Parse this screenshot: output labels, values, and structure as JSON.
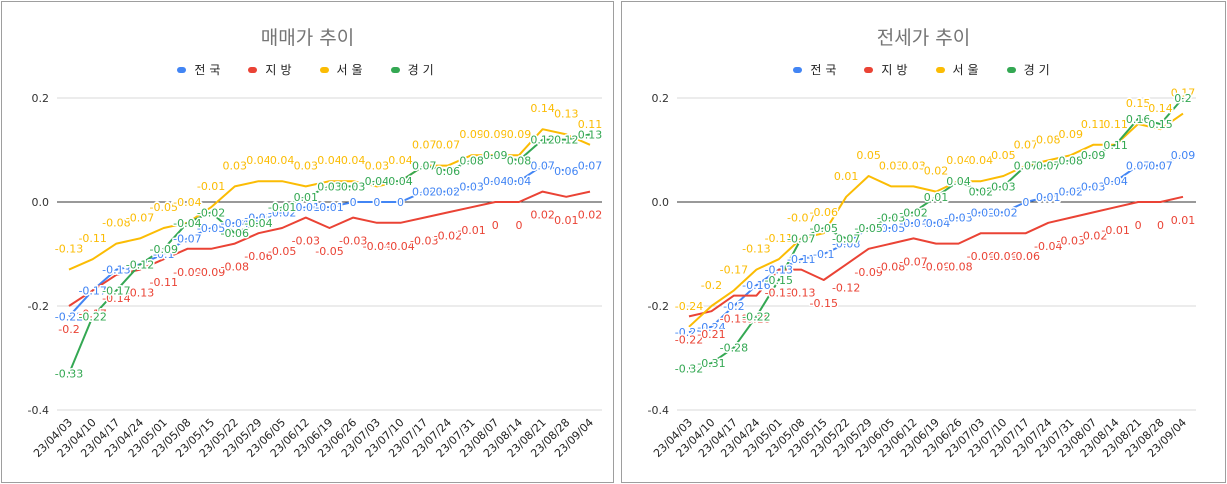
{
  "chart_data": [
    {
      "type": "line",
      "title": "매매가 추이",
      "legend": "top",
      "categories": [
        "23/04/03",
        "23/04/10",
        "23/04/17",
        "23/04/24",
        "23/05/01",
        "23/05/08",
        "23/05/15",
        "23/05/22",
        "23/05/29",
        "23/06/05",
        "23/06/12",
        "23/06/19",
        "23/06/26",
        "23/07/03",
        "23/07/10",
        "23/07/17",
        "23/07/24",
        "23/07/31",
        "23/08/07",
        "23/08/14",
        "23/08/21",
        "23/08/28",
        "23/09/04"
      ],
      "ylim": [
        -0.4,
        0.2
      ],
      "yticks": [
        {
          "value": 0.2,
          "label": "0.2"
        },
        {
          "value": 0,
          "label": "0.0"
        },
        {
          "value": -0.2,
          "label": "-0.2"
        },
        {
          "value": -0.4,
          "label": "-0.4"
        }
      ],
      "series": [
        {
          "name": "전국",
          "color": "#4285F4",
          "values": [
            -0.22,
            -0.17,
            -0.13,
            -0.12,
            -0.1,
            -0.07,
            -0.05,
            -0.04,
            -0.03,
            -0.02,
            -0.01,
            -0.01,
            0,
            0,
            0,
            0.02,
            0.02,
            0.03,
            0.04,
            0.04,
            0.07,
            0.06,
            0.07
          ]
        },
        {
          "name": "지방",
          "color": "#EA4335",
          "values": [
            -0.2,
            -0.17,
            -0.14,
            -0.13,
            -0.11,
            -0.09,
            -0.09,
            -0.08,
            -0.06,
            -0.05,
            -0.03,
            -0.05,
            -0.03,
            -0.04,
            -0.04,
            -0.03,
            -0.02,
            -0.01,
            0,
            0,
            0.02,
            0.01,
            0.02
          ]
        },
        {
          "name": "서울",
          "color": "#FBBC04",
          "values": [
            -0.13,
            -0.11,
            -0.08,
            -0.07,
            -0.05,
            -0.04,
            -0.01,
            0.03,
            0.04,
            0.04,
            0.03,
            0.04,
            0.04,
            0.03,
            0.04,
            0.07,
            0.07,
            0.09,
            0.09,
            0.09,
            0.14,
            0.13,
            0.11
          ]
        },
        {
          "name": "경기",
          "color": "#34A853",
          "values": [
            -0.33,
            -0.22,
            -0.17,
            -0.12,
            -0.09,
            -0.04,
            -0.02,
            -0.06,
            -0.04,
            -0.01,
            0.01,
            0.03,
            0.03,
            0.04,
            0.04,
            0.07,
            0.06,
            0.08,
            0.09,
            0.08,
            0.12,
            0.12,
            0.13
          ]
        }
      ]
    },
    {
      "type": "line",
      "title": "전세가 추이",
      "legend": "top",
      "categories": [
        "23/04/03",
        "23/04/10",
        "23/04/17",
        "23/04/24",
        "23/05/01",
        "23/05/08",
        "23/05/15",
        "23/05/22",
        "23/05/29",
        "23/06/05",
        "23/06/12",
        "23/06/19",
        "23/06/26",
        "23/07/03",
        "23/07/10",
        "23/07/17",
        "23/07/24",
        "23/07/31",
        "23/08/07",
        "23/08/14",
        "23/08/21",
        "23/08/28",
        "23/09/04"
      ],
      "ylim": [
        -0.4,
        0.2
      ],
      "yticks": [
        {
          "value": 0.2,
          "label": "0.2"
        },
        {
          "value": 0,
          "label": "0.0"
        },
        {
          "value": -0.2,
          "label": "-0.2"
        },
        {
          "value": -0.4,
          "label": "-0.4"
        }
      ],
      "series": [
        {
          "name": "전국",
          "color": "#4285F4",
          "values": [
            -0.25,
            -0.24,
            -0.2,
            -0.16,
            -0.13,
            -0.11,
            -0.1,
            -0.08,
            -0.05,
            -0.05,
            -0.04,
            -0.04,
            -0.03,
            -0.02,
            -0.02,
            0,
            0.01,
            0.02,
            0.03,
            0.04,
            0.07,
            0.07,
            0.09
          ]
        },
        {
          "name": "지방",
          "color": "#EA4335",
          "values": [
            -0.22,
            -0.21,
            -0.18,
            -0.18,
            -0.13,
            -0.13,
            -0.15,
            -0.12,
            -0.09,
            -0.08,
            -0.07,
            -0.08,
            -0.08,
            -0.06,
            -0.06,
            -0.06,
            -0.04,
            -0.03,
            -0.02,
            -0.01,
            0,
            0,
            0.01
          ]
        },
        {
          "name": "서울",
          "color": "#FBBC04",
          "values": [
            -0.24,
            -0.2,
            -0.17,
            -0.13,
            -0.11,
            -0.07,
            -0.06,
            0.01,
            0.05,
            0.03,
            0.03,
            0.02,
            0.04,
            0.04,
            0.05,
            0.07,
            0.08,
            0.09,
            0.11,
            0.11,
            0.15,
            0.14,
            0.17
          ]
        },
        {
          "name": "경기",
          "color": "#34A853",
          "values": [
            -0.32,
            -0.31,
            -0.28,
            -0.22,
            -0.15,
            -0.07,
            -0.05,
            -0.07,
            -0.05,
            -0.03,
            -0.02,
            0.01,
            0.04,
            0.02,
            0.03,
            0.07,
            0.07,
            0.08,
            0.09,
            0.11,
            0.16,
            0.15,
            0.2
          ]
        }
      ]
    }
  ]
}
